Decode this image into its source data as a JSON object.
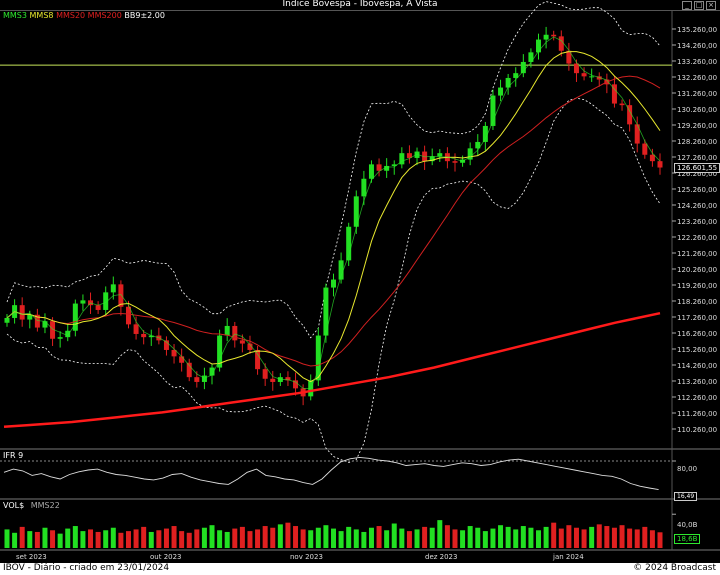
{
  "window": {
    "title": "Indice Bovespa - Ibovespa, A Vista"
  },
  "price_panel": {
    "legend": [
      {
        "label": "MMS3",
        "color": "#2ee82e"
      },
      {
        "label": "MMS8",
        "color": "#e8e82e"
      },
      {
        "label": "MMS20",
        "color": "#e02020"
      },
      {
        "label": "MMS200",
        "color": "#e02020"
      },
      {
        "label": "BB9±2.00",
        "color": "#ffffff"
      }
    ],
    "y_ticks": [
      "135.260,00",
      "134.260,00",
      "133.260,00",
      "132.260,00",
      "131.260,00",
      "130.260,00",
      "129.260,00",
      "128.260,00",
      "127.260,00",
      "126.260,00",
      "125.260,00",
      "124.260,00",
      "123.260,00",
      "122.260,00",
      "121.260,00",
      "120.260,00",
      "119.260,00",
      "118.260,00",
      "117.260,00",
      "116.260,00",
      "115.260,00",
      "114.260,00",
      "113.260,00",
      "112.260,00",
      "111.260,00",
      "110.260,00"
    ],
    "last_value": "126.601,55"
  },
  "ifr_panel": {
    "label": "IFR 9",
    "y_ticks": [
      "80,00"
    ],
    "last_value": "16,49"
  },
  "vol_panel": {
    "label": "VOL$",
    "ma_label": "MMS22",
    "y_ticks": [
      "40,0B"
    ],
    "last_value": "18,6B"
  },
  "x_axis": [
    "set 2023",
    "out 2023",
    "nov 2023",
    "dez 2023",
    "jan 2024"
  ],
  "footer": {
    "left": "IBOV - Diário - criado em 23/01/2024",
    "right": "© 2024 Broadcast"
  },
  "chart_data": {
    "type": "line",
    "title": "Indice Bovespa - Ibovespa, A Vista",
    "series_type": "candlestick",
    "xlabel": "",
    "ylabel": "",
    "ylim": [
      110000,
      136000
    ],
    "horizontal_line": 133000,
    "x_ticks": [
      "set 2023",
      "out 2023",
      "nov 2023",
      "dez 2023",
      "jan 2024"
    ],
    "close": [
      117200,
      118000,
      117100,
      117400,
      116600,
      117000,
      115900,
      116000,
      116400,
      118100,
      118300,
      118000,
      117700,
      118800,
      119300,
      117900,
      116800,
      116200,
      116000,
      116100,
      115800,
      115200,
      114800,
      114400,
      113500,
      113200,
      113600,
      114100,
      116100,
      116700,
      115800,
      115600,
      115200,
      114000,
      113400,
      113200,
      113500,
      113300,
      112800,
      112300,
      113300,
      116100,
      119100,
      119600,
      120800,
      122900,
      124800,
      125900,
      126800,
      126400,
      126700,
      126800,
      127500,
      127200,
      127600,
      127000,
      127300,
      127500,
      127000,
      126900,
      127100,
      127800,
      128200,
      129200,
      131100,
      131600,
      132200,
      132500,
      133200,
      133800,
      134600,
      134900,
      134800,
      133900,
      133100,
      132500,
      132300,
      132300,
      132100,
      131800,
      130600,
      130500,
      129300,
      128100,
      127400,
      127000,
      126602
    ],
    "mma200": [
      110400,
      110500,
      110600,
      110700,
      110850,
      111000,
      111150,
      111300,
      111500,
      111700,
      111900,
      112100,
      112300,
      112500,
      112750,
      113000,
      113250,
      113500,
      113800,
      114100,
      114450,
      114800,
      115150,
      115500,
      115850,
      116200,
      116550,
      116900,
      117200,
      117500
    ],
    "ifr": [
      55,
      62,
      58,
      48,
      52,
      45,
      40,
      50,
      56,
      60,
      62,
      55,
      50,
      48,
      44,
      40,
      38,
      42,
      50,
      52,
      44,
      38,
      34,
      30,
      28,
      40,
      55,
      62,
      48,
      45,
      40,
      38,
      32,
      28,
      40,
      60,
      78,
      85,
      88,
      86,
      82,
      80,
      76,
      70,
      72,
      74,
      70,
      68,
      72,
      76,
      74,
      70,
      72,
      78,
      82,
      84,
      80,
      76,
      72,
      68,
      64,
      60,
      56,
      52,
      48,
      46,
      40,
      30,
      24,
      20,
      16.49
    ],
    "volume": [
      22,
      18,
      25,
      20,
      19,
      24,
      21,
      17,
      23,
      26,
      20,
      22,
      19,
      21,
      24,
      18,
      20,
      22,
      25,
      19,
      21,
      23,
      26,
      20,
      18,
      22,
      24,
      27,
      21,
      19,
      23,
      25,
      20,
      22,
      26,
      24,
      28,
      30,
      26,
      22,
      21,
      24,
      27,
      23,
      20,
      25,
      22,
      19,
      24,
      26,
      21,
      29,
      23,
      20,
      22,
      25,
      24,
      33,
      27,
      22,
      21,
      26,
      24,
      20,
      23,
      27,
      25,
      22,
      26,
      24,
      21,
      25,
      30,
      23,
      27,
      24,
      22,
      25,
      28,
      26,
      24,
      27,
      23,
      22,
      25,
      21,
      18.6
    ]
  }
}
